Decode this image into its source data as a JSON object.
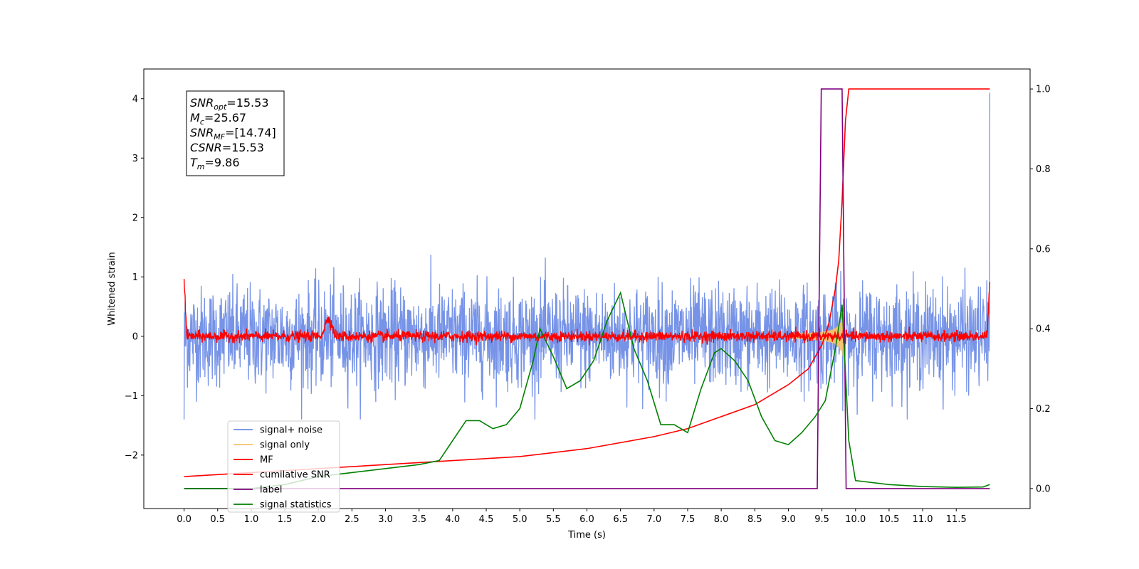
{
  "chart_data": {
    "type": "line",
    "xlabel": "Time (s)",
    "ylabel": "Whitened strain",
    "xlim": [
      -0.6,
      12.6
    ],
    "ylim": [
      -2.9,
      4.5
    ],
    "y2lim": [
      -0.05,
      1.05
    ],
    "x_ticks": [
      "0.0",
      "0.5",
      "1.0",
      "1.5",
      "2.0",
      "2.5",
      "3.0",
      "3.5",
      "4.0",
      "4.5",
      "5.0",
      "5.5",
      "6.0",
      "6.5",
      "7.0",
      "7.5",
      "8.0",
      "8.5",
      "9.0",
      "9.5",
      "10.0",
      "10.5",
      "11.0",
      "11.5"
    ],
    "y_ticks": [
      "−2",
      "−1",
      "0",
      "1",
      "2",
      "3",
      "4"
    ],
    "y2_ticks": [
      "0.0",
      "0.2",
      "0.4",
      "0.6",
      "0.8",
      "1.0"
    ],
    "grid": false,
    "legend_position": "lower-left",
    "annotation": {
      "lines": [
        {
          "sym": "SNR",
          "sub": "opt",
          "rest": "=15.53"
        },
        {
          "sym": "M",
          "sub": "c",
          "rest": "=25.67"
        },
        {
          "sym": "SNR",
          "sub": "MF",
          "rest": "=[14.74]"
        },
        {
          "sym": "CSNR",
          "sub": "",
          "rest": "=15.53"
        },
        {
          "sym": "T",
          "sub": "m",
          "rest": "=9.86"
        }
      ]
    },
    "series": [
      {
        "name": "signal+ noise",
        "color": "#6f8de6",
        "axis": "left",
        "description_kind": "noise",
        "amplitude_band": [
          -1.4,
          1.5
        ],
        "x_range": [
          0.0,
          12.0
        ]
      },
      {
        "name": "signal only",
        "color": "#f5c26b",
        "axis": "left",
        "description_kind": "chirp",
        "peak_time": 9.82,
        "peak_amplitude": 0.75
      },
      {
        "name": "MF",
        "color": "#ff0000",
        "axis": "left",
        "description_kind": "mf",
        "base_amplitude": 0.1,
        "bump_time": 2.15,
        "bump_amplitude": 0.3
      },
      {
        "name": "cumilative SNR",
        "color": "#ff0000",
        "axis": "right",
        "x": [
          0.0,
          1.0,
          2.0,
          3.0,
          4.0,
          5.0,
          6.0,
          7.0,
          7.5,
          8.0,
          8.5,
          9.0,
          9.3,
          9.5,
          9.6,
          9.7,
          9.75,
          9.8,
          9.85,
          9.9,
          12.0
        ],
        "values": [
          0.03,
          0.04,
          0.05,
          0.06,
          0.07,
          0.08,
          0.1,
          0.13,
          0.15,
          0.18,
          0.21,
          0.26,
          0.3,
          0.36,
          0.41,
          0.5,
          0.57,
          0.72,
          0.92,
          1.0,
          1.0
        ]
      },
      {
        "name": "label",
        "color": "#800080",
        "axis": "right",
        "x": [
          0.0,
          9.43,
          9.49,
          9.8,
          9.86,
          12.0
        ],
        "values": [
          0.0,
          0.0,
          1.0,
          1.0,
          0.0,
          0.0
        ]
      },
      {
        "name": "signal statistics",
        "color": "#008000",
        "axis": "right",
        "x": [
          0.0,
          0.5,
          1.0,
          1.5,
          2.0,
          2.5,
          3.0,
          3.5,
          3.8,
          4.0,
          4.2,
          4.4,
          4.6,
          4.8,
          5.0,
          5.2,
          5.3,
          5.5,
          5.7,
          5.9,
          6.1,
          6.3,
          6.5,
          6.7,
          6.9,
          7.1,
          7.3,
          7.5,
          7.7,
          7.9,
          8.0,
          8.2,
          8.4,
          8.6,
          8.8,
          9.0,
          9.2,
          9.4,
          9.55,
          9.7,
          9.8,
          9.9,
          10.0,
          10.5,
          11.0,
          11.5,
          11.9,
          12.0
        ],
        "values": [
          0.0,
          0.0,
          0.0,
          0.01,
          0.03,
          0.04,
          0.05,
          0.06,
          0.07,
          0.12,
          0.17,
          0.17,
          0.15,
          0.16,
          0.2,
          0.32,
          0.4,
          0.33,
          0.25,
          0.27,
          0.32,
          0.42,
          0.49,
          0.35,
          0.27,
          0.16,
          0.16,
          0.14,
          0.25,
          0.34,
          0.35,
          0.32,
          0.27,
          0.18,
          0.12,
          0.11,
          0.14,
          0.18,
          0.22,
          0.35,
          0.46,
          0.12,
          0.02,
          0.01,
          0.005,
          0.003,
          0.004,
          0.01
        ]
      }
    ]
  }
}
